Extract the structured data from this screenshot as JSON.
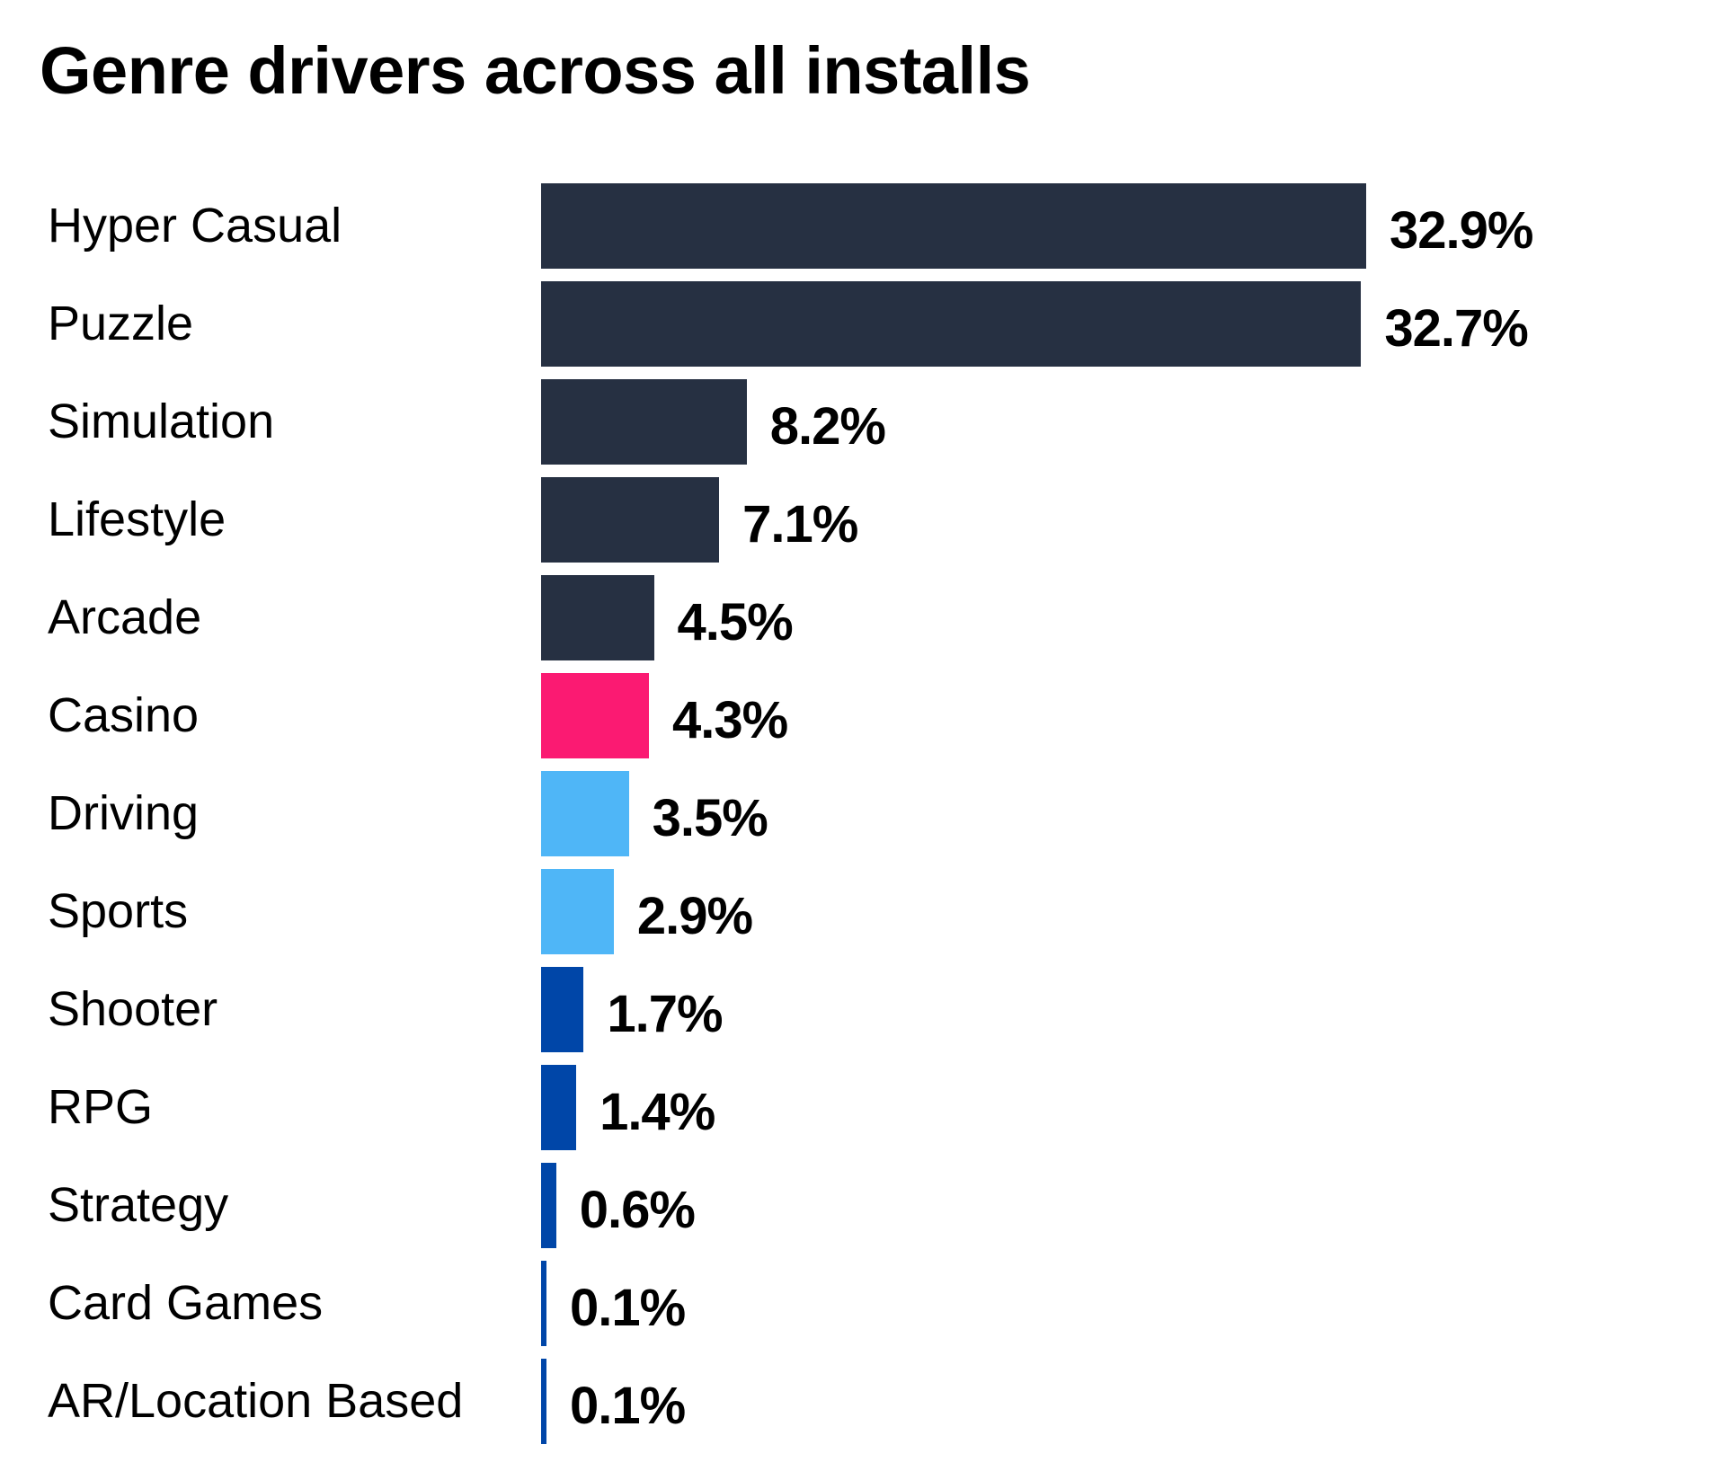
{
  "chart_data": {
    "type": "bar",
    "orientation": "horizontal",
    "title": "Genre drivers across all installs",
    "xlabel": "",
    "ylabel": "",
    "grid": false,
    "xlim": [
      0,
      32.9
    ],
    "categories": [
      "Hyper Casual",
      "Puzzle",
      "Simulation",
      "Lifestyle",
      "Arcade",
      "Casino",
      "Driving",
      "Sports",
      "Shooter",
      "RPG",
      "Strategy",
      "Card Games",
      "AR/Location Based"
    ],
    "values": [
      32.9,
      32.7,
      8.2,
      7.1,
      4.5,
      4.3,
      3.5,
      2.9,
      1.7,
      1.4,
      0.6,
      0.1,
      0.1
    ],
    "value_labels": [
      "32.9%",
      "32.7%",
      "8.2%",
      "7.1%",
      "4.5%",
      "4.3%",
      "3.5%",
      "2.9%",
      "1.7%",
      "1.4%",
      "0.6%",
      "0.1%",
      "0.1%"
    ],
    "colors": [
      "#263042",
      "#263042",
      "#263042",
      "#263042",
      "#263042",
      "#fb1a72",
      "#4fb6f7",
      "#4fb6f7",
      "#0046a8",
      "#0046a8",
      "#0046a8",
      "#0046a8",
      "#0046a8"
    ]
  }
}
